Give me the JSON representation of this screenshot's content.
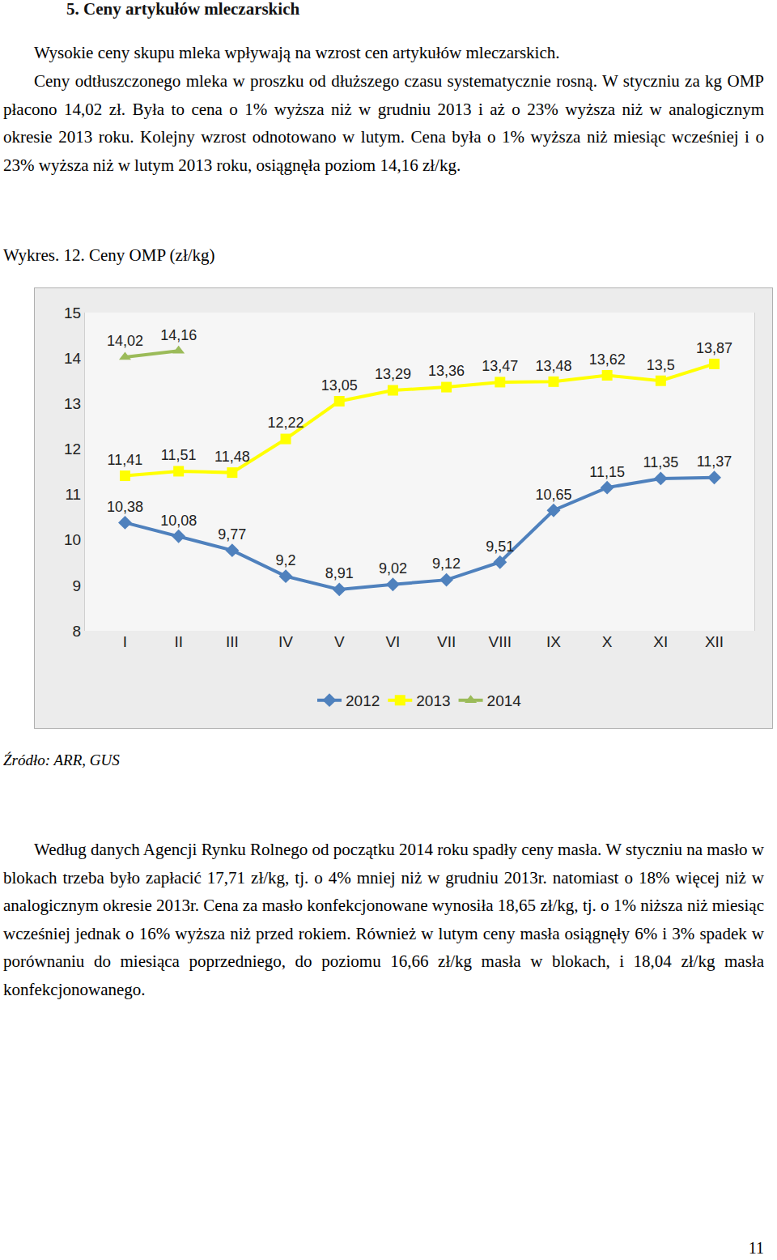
{
  "heading": "5. Ceny artykułów mleczarskich",
  "paragraphs": [
    "Wysokie ceny skupu mleka wpływają na wzrost cen artykułów mleczarskich.",
    "Ceny odtłuszczonego mleka w proszku od dłuższego czasu systematycznie rosną. W styczniu za kg OMP płacono 14,02 zł. Była to cena o 1% wyższa niż w grudniu 2013 i aż o 23% wyższa niż w analogicznym okresie 2013 roku. Kolejny wzrost odnotowano w lutym. Cena była o 1% wyższa niż miesiąc wcześniej i o 23% wyższa niż w lutym 2013 roku, osiągnęła poziom 14,16 zł/kg."
  ],
  "caption": "Wykres. 12. Ceny OMP (zł/kg)",
  "chart_data": {
    "type": "line",
    "categories": [
      "I",
      "II",
      "III",
      "IV",
      "V",
      "VI",
      "VII",
      "VIII",
      "IX",
      "X",
      "XI",
      "XII"
    ],
    "series": [
      {
        "name": "2012",
        "color": "#4f81bd",
        "marker": "diamond",
        "values": [
          10.38,
          10.08,
          9.77,
          9.2,
          8.91,
          9.02,
          9.12,
          9.51,
          10.65,
          11.15,
          11.35,
          11.37
        ],
        "value_labels": [
          "10,38",
          "10,08",
          "9,77",
          "9,2",
          "8,91",
          "9,02",
          "9,12",
          "9,51",
          "10,65",
          "11,15",
          "11,35",
          "11,37"
        ]
      },
      {
        "name": "2013",
        "color": "#ffff00",
        "marker": "square",
        "values": [
          11.41,
          11.51,
          11.48,
          12.22,
          13.05,
          13.29,
          13.36,
          13.47,
          13.48,
          13.62,
          13.5,
          13.87
        ],
        "value_labels": [
          "11,41",
          "11,51",
          "11,48",
          "12,22",
          "13,05",
          "13,29",
          "13,36",
          "13,47",
          "13,48",
          "13,62",
          "13,5",
          "13,87"
        ]
      },
      {
        "name": "2014",
        "color": "#9bbb59",
        "marker": "triangle-up",
        "values": [
          14.02,
          14.16,
          null,
          null,
          null,
          null,
          null,
          null,
          null,
          null,
          null,
          null
        ],
        "value_labels": [
          "14,02",
          "14,16",
          null,
          null,
          null,
          null,
          null,
          null,
          null,
          null,
          null,
          null
        ]
      }
    ],
    "ylim": [
      8,
      15
    ],
    "yticks": [
      8,
      9,
      10,
      11,
      12,
      13,
      14,
      15
    ],
    "grid": false,
    "legend": "bottom",
    "data_labels": true
  },
  "source": "Źródło: ARR, GUS",
  "paragraphs_after": [
    "Według danych Agencji Rynku Rolnego od początku 2014 roku spadły ceny masła. W styczniu na masło w blokach trzeba było zapłacić 17,71 zł/kg, tj. o 4% mniej niż w grudniu 2013r. natomiast o 18% więcej niż w analogicznym okresie 2013r. Cena za masło konfekcjonowane wynosiła 18,65 zł/kg, tj. o 1% niższa niż miesiąc wcześniej jednak o 16% wyższa niż przed rokiem. Również w lutym ceny masła osiągnęły 6% i 3% spadek w porównaniu do miesiąca poprzedniego, do poziomu 16,66 zł/kg masła w blokach, i 18,04 zł/kg masła konfekcjonowanego."
  ],
  "page_number": "11"
}
